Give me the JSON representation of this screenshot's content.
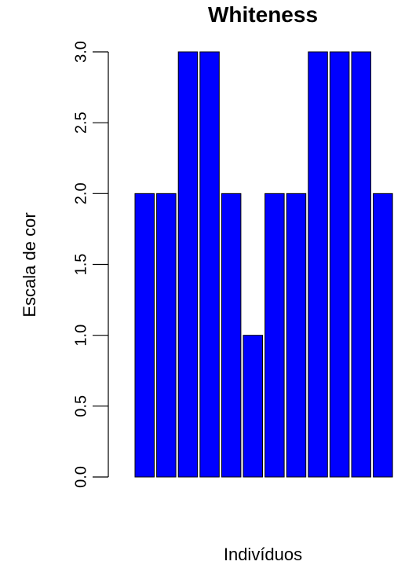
{
  "chart_data": {
    "type": "bar",
    "title": "Whiteness",
    "xlabel": "Indivíduos",
    "ylabel": "Escala de cor",
    "ylim": [
      0,
      3
    ],
    "yticks": [
      "0.0",
      "0.5",
      "1.0",
      "1.5",
      "2.0",
      "2.5",
      "3.0"
    ],
    "values": [
      2,
      2,
      3,
      3,
      2,
      1,
      2,
      2,
      3,
      3,
      3,
      2
    ],
    "bar_color": "#0000ff",
    "grid": false
  }
}
